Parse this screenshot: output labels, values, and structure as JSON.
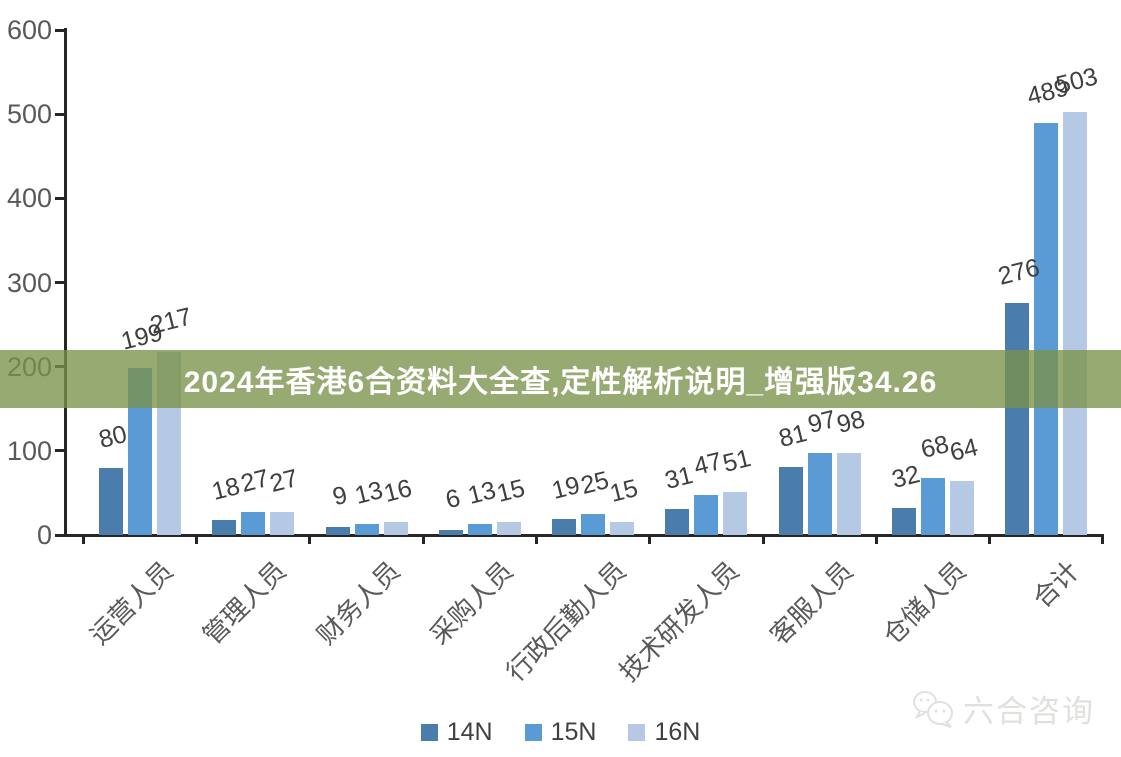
{
  "banner": {
    "title": "2024年香港6合资料大全查,定性解析说明_增强版34.26",
    "bg_color": "rgba(122,146,73,0.78)",
    "text_color": "#ffffff"
  },
  "watermark": {
    "icon": "wechat-chat-bubbles-icon",
    "text": "六合咨询",
    "color": "#e0e0dc"
  },
  "chart_data": {
    "type": "bar",
    "title": "",
    "xlabel": "",
    "ylabel": "",
    "categories": [
      "运营人员",
      "管理人员",
      "财务人员",
      "采购人员",
      "行政后勤人员",
      "技术研发人员",
      "客服人员",
      "仓储人员",
      "合计"
    ],
    "series": [
      {
        "name": "14N",
        "color": "#4a7dac",
        "values": [
          80,
          18,
          9,
          6,
          19,
          31,
          81,
          32,
          276
        ]
      },
      {
        "name": "15N",
        "color": "#5b9bd5",
        "values": [
          199,
          27,
          13,
          13,
          25,
          47,
          97,
          68,
          489
        ]
      },
      {
        "name": "16N",
        "color": "#b5c9e4",
        "values": [
          217,
          27,
          16,
          15,
          15,
          51,
          98,
          64,
          503
        ]
      }
    ],
    "ylim": [
      0,
      600
    ],
    "yticks": [
      0,
      100,
      200,
      300,
      400,
      500,
      600
    ],
    "grid": false,
    "data_labels": true,
    "legend_position": "bottom",
    "category_label_rotation_deg": 45,
    "data_label_rotation_deg": 14,
    "axis_color": "#262626",
    "tick_label_color": "#595959",
    "data_label_color": "#3f3f3f"
  }
}
